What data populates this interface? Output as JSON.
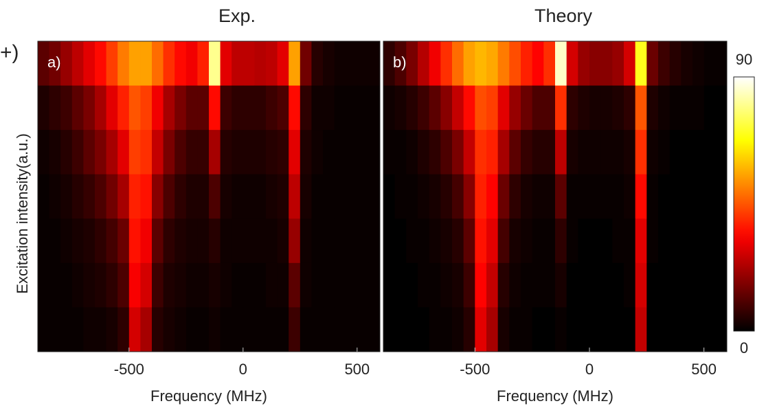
{
  "margin_text": "+)",
  "chart_data": [
    {
      "type": "heatmap",
      "title": "Exp.",
      "panel_label": "a)",
      "xlabel": "Frequency (MHz)",
      "ylabel": "Excitation intensity(a.u.)",
      "xlim": [
        -900,
        600
      ],
      "xticks": [
        -500,
        0,
        500
      ],
      "xbins": [
        -900,
        -850,
        -800,
        -750,
        -700,
        -650,
        -600,
        -550,
        -500,
        -450,
        -400,
        -350,
        -300,
        -250,
        -200,
        -150,
        -100,
        -50,
        0,
        50,
        100,
        150,
        200,
        250,
        300,
        350,
        400,
        450,
        500,
        550,
        600
      ],
      "values": [
        [
          12,
          15,
          20,
          25,
          30,
          35,
          42,
          50,
          55,
          55,
          48,
          40,
          35,
          32,
          38,
          80,
          30,
          25,
          25,
          24,
          25,
          30,
          55,
          15,
          5,
          3,
          2,
          2,
          2,
          2
        ],
        [
          4,
          6,
          8,
          12,
          16,
          22,
          30,
          38,
          45,
          42,
          32,
          22,
          16,
          12,
          12,
          35,
          8,
          6,
          6,
          6,
          8,
          10,
          35,
          6,
          2,
          2,
          1,
          1,
          1,
          1
        ],
        [
          2,
          3,
          5,
          8,
          12,
          16,
          22,
          30,
          42,
          40,
          26,
          16,
          10,
          7,
          7,
          22,
          5,
          4,
          4,
          4,
          5,
          6,
          30,
          4,
          2,
          1,
          1,
          1,
          1,
          1
        ],
        [
          1,
          2,
          3,
          5,
          7,
          10,
          15,
          22,
          38,
          36,
          18,
          10,
          6,
          4,
          4,
          10,
          3,
          2,
          2,
          2,
          3,
          4,
          25,
          3,
          1,
          1,
          1,
          1,
          1,
          1
        ],
        [
          1,
          1,
          2,
          3,
          4,
          6,
          9,
          14,
          36,
          32,
          12,
          6,
          4,
          3,
          3,
          5,
          2,
          2,
          2,
          2,
          2,
          3,
          20,
          2,
          1,
          1,
          1,
          1,
          1,
          1
        ],
        [
          1,
          1,
          1,
          2,
          3,
          4,
          6,
          10,
          33,
          28,
          8,
          4,
          3,
          2,
          2,
          3,
          2,
          1,
          1,
          1,
          2,
          2,
          12,
          2,
          1,
          1,
          1,
          1,
          1,
          1
        ],
        [
          1,
          1,
          1,
          1,
          2,
          2,
          3,
          6,
          28,
          22,
          5,
          3,
          2,
          1,
          1,
          2,
          1,
          1,
          1,
          1,
          1,
          1,
          8,
          1,
          1,
          1,
          1,
          1,
          1,
          1
        ]
      ]
    },
    {
      "type": "heatmap",
      "title": "Theory",
      "panel_label": "b)",
      "xlabel": "Frequency (MHz)",
      "xlim": [
        -900,
        600
      ],
      "xticks": [
        -500,
        0,
        500
      ],
      "xbins": [
        -900,
        -850,
        -800,
        -750,
        -700,
        -650,
        -600,
        -550,
        -500,
        -450,
        -400,
        -350,
        -300,
        -250,
        -200,
        -150,
        -100,
        -50,
        0,
        50,
        100,
        150,
        200,
        250,
        300,
        350,
        400,
        450,
        500,
        550,
        600
      ],
      "zlim": [
        0,
        90
      ],
      "zticks": [
        0,
        90
      ],
      "values": [
        [
          6,
          10,
          16,
          24,
          32,
          40,
          48,
          55,
          58,
          56,
          50,
          44,
          38,
          34,
          40,
          85,
          28,
          20,
          18,
          18,
          20,
          28,
          70,
          14,
          8,
          5,
          3,
          2,
          1,
          1
        ],
        [
          2,
          3,
          5,
          8,
          12,
          18,
          26,
          35,
          44,
          42,
          30,
          20,
          14,
          10,
          10,
          40,
          6,
          4,
          3,
          3,
          4,
          6,
          45,
          4,
          2,
          1,
          1,
          1,
          0,
          0
        ],
        [
          1,
          1,
          2,
          4,
          6,
          10,
          16,
          26,
          40,
          38,
          22,
          12,
          7,
          5,
          5,
          25,
          3,
          2,
          2,
          2,
          2,
          3,
          40,
          2,
          1,
          0,
          0,
          0,
          0,
          0
        ],
        [
          0,
          1,
          1,
          2,
          3,
          5,
          9,
          18,
          38,
          34,
          14,
          6,
          3,
          2,
          2,
          12,
          1,
          1,
          1,
          1,
          1,
          2,
          35,
          1,
          0,
          0,
          0,
          0,
          0,
          0
        ],
        [
          0,
          0,
          1,
          1,
          2,
          3,
          5,
          12,
          36,
          30,
          9,
          3,
          2,
          1,
          1,
          6,
          1,
          0,
          0,
          0,
          1,
          1,
          30,
          1,
          0,
          0,
          0,
          0,
          0,
          0
        ],
        [
          0,
          0,
          0,
          1,
          1,
          2,
          3,
          8,
          34,
          26,
          5,
          2,
          1,
          1,
          1,
          3,
          0,
          0,
          0,
          0,
          0,
          1,
          28,
          0,
          0,
          0,
          0,
          0,
          0,
          0
        ],
        [
          0,
          0,
          0,
          0,
          1,
          1,
          2,
          5,
          30,
          22,
          3,
          1,
          1,
          0,
          0,
          1,
          0,
          0,
          0,
          0,
          0,
          0,
          26,
          0,
          0,
          0,
          0,
          0,
          0,
          0
        ]
      ]
    }
  ]
}
